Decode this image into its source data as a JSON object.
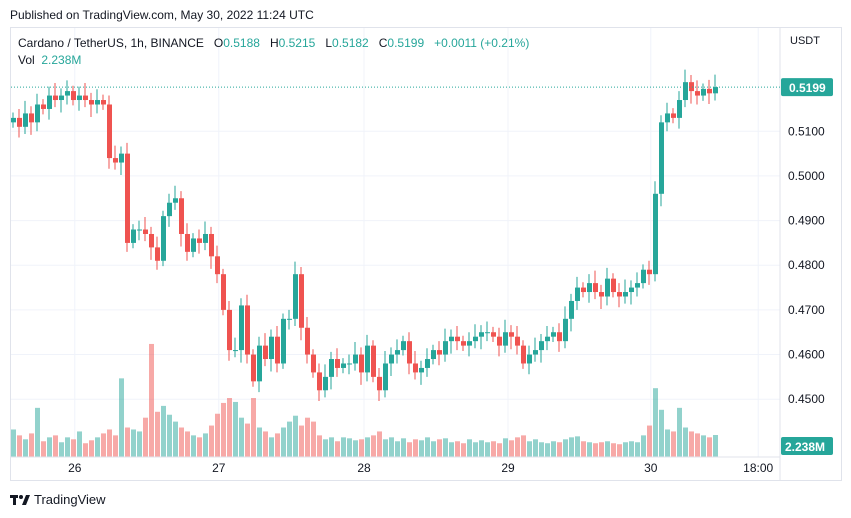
{
  "published": "Published on TradingView.com, May 30, 2022 11:24 UTC",
  "legend": {
    "symbol": "Cardano / TetherUS, 1h, BINANCE",
    "o_label": "O",
    "o": "0.5188",
    "h_label": "H",
    "h": "0.5215",
    "l_label": "L",
    "l": "0.5182",
    "c_label": "C",
    "c": "0.5199",
    "change": "+0.0011 (+0.21%)",
    "vol_label": "Vol",
    "vol": "2.238M"
  },
  "brand": "TradingView",
  "colors": {
    "up": "#26a69a",
    "down": "#ef5350",
    "grid": "#f0f3fa"
  },
  "chart_data": {
    "type": "candlestick",
    "currency_label": "USDT",
    "ylim": [
      0.444,
      0.5235
    ],
    "y_ticks": [
      "0.5100",
      "0.5000",
      "0.4900",
      "0.4800",
      "0.4700",
      "0.4600",
      "0.4500"
    ],
    "x_ticks": [
      {
        "label": "26",
        "index": 10.3
      },
      {
        "label": "27",
        "index": 34.3
      },
      {
        "label": "28",
        "index": 58.5
      },
      {
        "label": "29",
        "index": 82.5
      },
      {
        "label": "30",
        "index": 106.3
      },
      {
        "label": "18:00",
        "index": 124.2
      }
    ],
    "last_price_label": "0.5199",
    "last_volume_label": "2.238M",
    "closes": [
      0.513,
      0.511,
      0.514,
      0.512,
      0.516,
      0.515,
      0.518,
      0.517,
      0.518,
      0.519,
      0.517,
      0.518,
      0.517,
      0.516,
      0.517,
      0.516,
      0.504,
      0.503,
      0.505,
      0.485,
      0.488,
      0.488,
      0.487,
      0.484,
      0.481,
      0.491,
      0.494,
      0.495,
      0.487,
      0.483,
      0.486,
      0.485,
      0.487,
      0.482,
      0.478,
      0.47,
      0.461,
      0.461,
      0.471,
      0.46,
      0.454,
      0.462,
      0.459,
      0.464,
      0.458,
      0.468,
      0.468,
      0.478,
      0.466,
      0.46,
      0.456,
      0.452,
      0.455,
      0.459,
      0.457,
      0.458,
      0.458,
      0.46,
      0.456,
      0.462,
      0.455,
      0.452,
      0.458,
      0.46,
      0.461,
      0.463,
      0.458,
      0.456,
      0.457,
      0.459,
      0.461,
      0.46,
      0.463,
      0.464,
      0.463,
      0.462,
      0.463,
      0.464,
      0.465,
      0.465,
      0.464,
      0.462,
      0.465,
      0.464,
      0.462,
      0.458,
      0.46,
      0.461,
      0.463,
      0.464,
      0.465,
      0.463,
      0.468,
      0.472,
      0.475,
      0.474,
      0.476,
      0.474,
      0.473,
      0.477,
      0.474,
      0.473,
      0.474,
      0.475,
      0.476,
      0.479,
      0.478,
      0.496,
      0.512,
      0.514,
      0.513,
      0.517,
      0.521,
      0.519,
      0.518,
      0.5195,
      0.5185,
      0.5199
    ],
    "volumes_m": [
      2.8,
      2.2,
      1.8,
      2.4,
      5.0,
      1.6,
      2.0,
      2.2,
      1.5,
      2.0,
      1.8,
      2.6,
      1.4,
      1.7,
      2.0,
      2.4,
      2.8,
      2.2,
      8.0,
      3.0,
      2.8,
      2.6,
      4.0,
      11.5,
      4.6,
      5.2,
      4.3,
      3.6,
      3.0,
      2.6,
      2.2,
      2.0,
      2.4,
      3.2,
      4.4,
      5.5,
      6.0,
      5.6,
      4.0,
      3.4,
      6.0,
      3.0,
      2.6,
      2.0,
      2.4,
      3.0,
      3.6,
      4.2,
      3.2,
      4.0,
      3.6,
      2.2,
      1.8,
      2.0,
      1.6,
      2.0,
      1.9,
      1.7,
      1.8,
      2.0,
      2.2,
      2.6,
      1.8,
      2.0,
      1.6,
      1.9,
      1.5,
      1.8,
      1.7,
      2.0,
      1.6,
      1.8,
      1.9,
      1.5,
      1.6,
      1.4,
      1.8,
      1.5,
      1.7,
      1.5,
      1.6,
      1.4,
      1.9,
      1.7,
      2.0,
      2.2,
      1.6,
      1.8,
      1.5,
      1.4,
      1.6,
      1.5,
      1.8,
      2.0,
      2.1,
      1.6,
      1.5,
      1.4,
      1.5,
      1.6,
      1.4,
      1.3,
      1.5,
      1.6,
      1.5,
      2.2,
      3.2,
      7.0,
      4.8,
      2.8,
      2.6,
      5.0,
      3.0,
      2.6,
      2.4,
      2.2,
      2.0,
      2.238
    ]
  }
}
